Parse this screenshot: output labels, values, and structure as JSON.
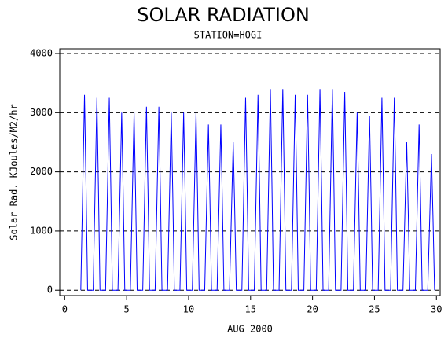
{
  "chart_data": {
    "type": "line",
    "title": "SOLAR RADIATION",
    "subtitle": "STATION=HOGI",
    "x_label": "AUG 2000",
    "y_label": "Solar Rad. KJoules/M2/hr",
    "xlim": [
      -0.4,
      30.3
    ],
    "xticks": [
      0,
      5,
      10,
      15,
      20,
      25,
      30
    ],
    "ylim": [
      -90,
      4080
    ],
    "yticks": [
      0,
      1000,
      2000,
      3000,
      4000
    ],
    "grid": true,
    "series": [
      {
        "name": "Solar Rad.",
        "color": "#0000ff",
        "x": [
          1.3,
          1.45,
          1.6,
          1.72,
          1.85,
          2.3,
          2.45,
          2.6,
          2.72,
          2.85,
          3.3,
          3.45,
          3.6,
          3.72,
          3.85,
          4.3,
          4.45,
          4.6,
          4.72,
          4.85,
          5.3,
          5.45,
          5.6,
          5.72,
          5.85,
          6.3,
          6.45,
          6.6,
          6.72,
          6.85,
          7.3,
          7.45,
          7.6,
          7.72,
          7.85,
          8.3,
          8.45,
          8.6,
          8.72,
          8.85,
          9.3,
          9.45,
          9.6,
          9.72,
          9.85,
          10.3,
          10.45,
          10.6,
          10.72,
          10.85,
          11.3,
          11.45,
          11.6,
          11.72,
          11.85,
          12.3,
          12.45,
          12.6,
          12.72,
          12.85,
          13.3,
          13.45,
          13.6,
          13.72,
          13.85,
          14.3,
          14.45,
          14.6,
          14.72,
          14.85,
          15.3,
          15.45,
          15.6,
          15.72,
          15.85,
          16.3,
          16.45,
          16.6,
          16.72,
          16.85,
          17.3,
          17.45,
          17.6,
          17.72,
          17.85,
          18.3,
          18.45,
          18.6,
          18.72,
          18.85,
          19.3,
          19.45,
          19.6,
          19.72,
          19.85,
          20.3,
          20.45,
          20.6,
          20.72,
          20.85,
          21.3,
          21.45,
          21.6,
          21.72,
          21.85,
          22.3,
          22.45,
          22.6,
          22.72,
          22.85,
          23.3,
          23.45,
          23.6,
          23.72,
          23.85,
          24.3,
          24.45,
          24.6,
          24.72,
          24.85,
          25.3,
          25.45,
          25.6,
          25.72,
          25.85,
          26.3,
          26.45,
          26.6,
          26.72,
          26.85,
          27.3,
          27.45,
          27.6,
          27.72,
          27.85,
          28.3,
          28.45,
          28.6,
          28.72,
          28.85,
          29.3,
          29.45,
          29.6,
          29.72,
          29.85
        ],
        "values": [
          0,
          1650,
          3300,
          1815,
          0,
          0,
          1625,
          3250,
          1790,
          0,
          0,
          1625,
          3250,
          1790,
          0,
          0,
          1500,
          3000,
          1650,
          0,
          0,
          1500,
          3000,
          1650,
          0,
          0,
          1550,
          3100,
          1705,
          0,
          0,
          1550,
          3100,
          1705,
          0,
          0,
          1500,
          3000,
          1650,
          0,
          0,
          1500,
          3000,
          1650,
          0,
          0,
          1500,
          3000,
          1650,
          0,
          0,
          1400,
          2800,
          1540,
          0,
          0,
          1400,
          2800,
          1540,
          0,
          0,
          1250,
          2500,
          1375,
          0,
          0,
          1625,
          3250,
          1790,
          0,
          0,
          1650,
          3300,
          1815,
          0,
          0,
          1700,
          3400,
          1870,
          0,
          0,
          1700,
          3400,
          1870,
          0,
          0,
          1650,
          3300,
          1815,
          0,
          0,
          1650,
          3300,
          1815,
          0,
          0,
          1700,
          3400,
          1870,
          0,
          0,
          1700,
          3400,
          1870,
          0,
          0,
          1675,
          3350,
          1843,
          0,
          0,
          1500,
          3000,
          1650,
          0,
          0,
          1475,
          2950,
          1623,
          0,
          0,
          1625,
          3250,
          1790,
          0,
          0,
          1625,
          3250,
          1790,
          0,
          0,
          1250,
          2500,
          1375,
          0,
          0,
          1400,
          2800,
          1540,
          0,
          0,
          1150,
          2300,
          1265,
          0
        ]
      }
    ]
  }
}
